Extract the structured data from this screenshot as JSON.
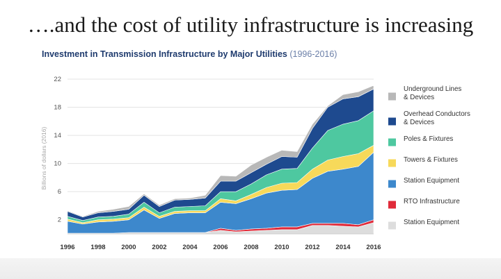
{
  "slide": {
    "title": "….and the cost of utility infrastructure is increasing"
  },
  "chart_data": {
    "type": "area",
    "stacked": true,
    "title": "Investment in Transmission Infrastructure by Major Utilities",
    "subtitle": "(1996-2016)",
    "xlabel": "",
    "ylabel": "Billions of dollars (2016)",
    "xlim": [
      1996,
      2016
    ],
    "ylim": [
      0,
      22
    ],
    "x_ticks": [
      "1996",
      "1998",
      "2000",
      "2002",
      "2004",
      "2006",
      "2008",
      "2010",
      "2012",
      "2014",
      "2016"
    ],
    "y_ticks": [
      "2",
      "6",
      "10",
      "14",
      "18",
      "22"
    ],
    "grid": "horizontal",
    "legend_position": "right",
    "x": [
      1996,
      1997,
      1998,
      1999,
      2000,
      2001,
      2002,
      2003,
      2004,
      2005,
      2006,
      2007,
      2008,
      2009,
      2010,
      2011,
      2012,
      2013,
      2014,
      2015,
      2016
    ],
    "series": [
      {
        "name": "Station Equipment",
        "color": "#dddddd",
        "values": [
          0.1,
          0.1,
          0.1,
          0.1,
          0.2,
          0.2,
          0.2,
          0.2,
          0.2,
          0.2,
          0.5,
          0.3,
          0.4,
          0.5,
          0.6,
          0.6,
          1.2,
          1.2,
          1.1,
          1.0,
          1.6
        ]
      },
      {
        "name": "RTO Infrastructure",
        "color": "#e02b3a",
        "values": [
          0.0,
          0.0,
          0.0,
          0.0,
          0.0,
          0.0,
          0.0,
          0.0,
          0.0,
          0.0,
          0.3,
          0.2,
          0.3,
          0.3,
          0.4,
          0.4,
          0.3,
          0.3,
          0.4,
          0.3,
          0.4
        ]
      },
      {
        "name": "Station Equipment",
        "color": "#3d88cc",
        "values": [
          1.7,
          1.3,
          1.6,
          1.7,
          1.8,
          3.2,
          2.0,
          2.7,
          2.8,
          2.8,
          3.7,
          3.8,
          4.3,
          5.0,
          5.2,
          5.3,
          6.4,
          7.4,
          7.7,
          8.3,
          9.6
        ]
      },
      {
        "name": "Towers & Fixtures",
        "color": "#f7d95a",
        "values": [
          0.3,
          0.2,
          0.3,
          0.3,
          0.3,
          0.4,
          0.3,
          0.3,
          0.3,
          0.3,
          0.5,
          0.4,
          0.6,
          0.8,
          1.0,
          1.0,
          1.3,
          1.6,
          1.8,
          1.8,
          1.0
        ]
      },
      {
        "name": "Poles & Fixtures",
        "color": "#4ec8a0",
        "values": [
          0.4,
          0.3,
          0.4,
          0.4,
          0.5,
          0.7,
          0.5,
          0.6,
          0.6,
          0.7,
          1.0,
          1.3,
          1.5,
          1.8,
          2.0,
          2.0,
          3.0,
          4.2,
          4.6,
          4.7,
          4.9
        ]
      },
      {
        "name": "Overhead Conductors & Devices",
        "color": "#1e4a8f",
        "values": [
          0.7,
          0.5,
          0.6,
          0.7,
          0.7,
          1.0,
          0.9,
          1.0,
          1.0,
          1.1,
          1.5,
          1.5,
          1.6,
          1.5,
          1.8,
          1.6,
          2.8,
          3.3,
          3.6,
          3.4,
          3.1
        ]
      },
      {
        "name": "Underground Lines & Devices",
        "color": "#b8b8b8",
        "values": [
          0.1,
          0.1,
          0.2,
          0.3,
          0.4,
          0.2,
          0.2,
          0.2,
          0.2,
          0.4,
          0.8,
          0.7,
          1.1,
          1.0,
          0.9,
          0.8,
          0.6,
          0.2,
          0.6,
          0.7,
          0.5
        ]
      }
    ],
    "legend": [
      {
        "label_lines": [
          "Underground Lines",
          "& Devices"
        ],
        "color": "#b8b8b8"
      },
      {
        "label_lines": [
          "Overhead Conductors",
          "& Devices"
        ],
        "color": "#1e4a8f"
      },
      {
        "label_lines": [
          "Poles & Fixtures"
        ],
        "color": "#4ec8a0"
      },
      {
        "label_lines": [
          "Towers & Fixtures"
        ],
        "color": "#f7d95a"
      },
      {
        "label_lines": [
          "Station Equipment"
        ],
        "color": "#3d88cc"
      },
      {
        "label_lines": [
          "RTO Infrastructure"
        ],
        "color": "#e02b3a"
      },
      {
        "label_lines": [
          "Station Equipment"
        ],
        "color": "#dddddd"
      }
    ]
  }
}
